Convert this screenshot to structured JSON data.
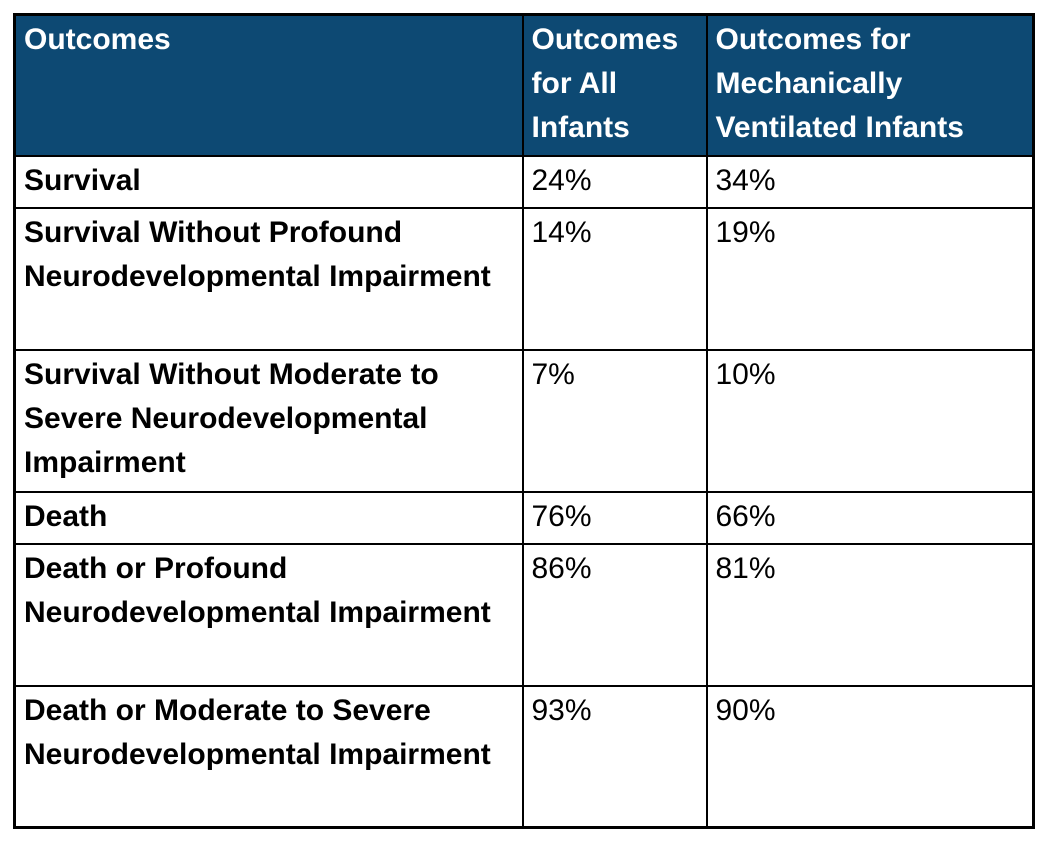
{
  "chart_data": {
    "type": "table",
    "title": "",
    "columns": [
      "Outcomes",
      "Outcomes for All Infants",
      "Outcomes for Mechanically Ventilated Infants"
    ],
    "rows": [
      [
        "Survival",
        "24%",
        "34%"
      ],
      [
        "Survival Without Profound Neurodevelopmental Impairment",
        "14%",
        "19%"
      ],
      [
        "Survival Without Moderate to Severe Neurodevelopmental Impairment",
        "7%",
        "10%"
      ],
      [
        "Death",
        "76%",
        "66%"
      ],
      [
        "Death or Profound Neurodevelopmental Impairment",
        "86%",
        "81%"
      ],
      [
        "Death or Moderate to Severe Neurodevelopmental Impairment",
        "93%",
        "90%"
      ]
    ],
    "layout": {
      "header_position": "top",
      "grid": true
    }
  },
  "colors": {
    "header_bg": "#0d4973",
    "header_text": "#ffffff",
    "border": "#000000",
    "body_text": "#000000",
    "page_bg": "#ffffff"
  }
}
